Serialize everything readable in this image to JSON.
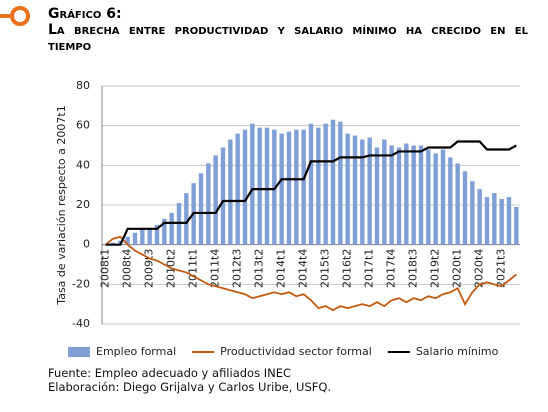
{
  "chart_data": {
    "type": "bar-line",
    "title": "Gráfico 6:",
    "subtitle": "La brecha entre productividad y salario mínimo ha crecido en el tiempo",
    "y_label": "Tasa de variación respecto a 2007t1",
    "notes": [
      "Fuente: Empleo adecuado y afiliados INEC",
      "Elaboración: Diego Grijalva y Carlos Uribe, USFQ."
    ],
    "categories": [
      "2008t1",
      null,
      null,
      "2008t4",
      null,
      null,
      "2009t3",
      null,
      null,
      "2010t2",
      null,
      null,
      "2011t1",
      null,
      null,
      "2011t4",
      null,
      null,
      "2012t3",
      null,
      null,
      "2013t2",
      null,
      null,
      "2014t1",
      null,
      null,
      "2014t4",
      null,
      null,
      "2015t3",
      null,
      null,
      "2016t2",
      null,
      null,
      "2017t1",
      null,
      null,
      "2017t4",
      null,
      null,
      "2018t3",
      null,
      null,
      "2019t2",
      null,
      null,
      "2020t1",
      null,
      null,
      "2020t4",
      null,
      null,
      "2021t3",
      null,
      null
    ],
    "series": [
      {
        "name": "Empleo formal",
        "kind": "bar",
        "color": "#7f9fd6",
        "values": [
          0,
          1,
          2,
          4,
          6,
          8,
          8,
          10,
          13,
          16,
          21,
          26,
          31,
          36,
          41,
          45,
          49,
          53,
          56,
          58,
          61,
          59,
          59,
          58,
          56,
          57,
          58,
          58,
          61,
          59,
          61,
          63,
          62,
          56,
          55,
          53,
          54,
          49,
          53,
          50,
          49,
          51,
          50,
          50,
          48,
          46,
          48,
          44,
          41,
          37,
          32,
          28,
          24,
          26,
          23,
          24,
          19
        ]
      },
      {
        "name": "Productividad sector formal",
        "kind": "line",
        "color": "#c55a11",
        "values": [
          0,
          3,
          4,
          0,
          -3,
          -5,
          -7,
          -8,
          -10,
          -12,
          -13,
          -14,
          -16,
          -18,
          -20,
          -21,
          -22,
          -23,
          -24,
          -25,
          -27,
          -26,
          -25,
          -24,
          -25,
          -24,
          -26,
          -25,
          -28,
          -32,
          -31,
          -33,
          -31,
          -32,
          -31,
          -30,
          -31,
          -29,
          -31,
          -28,
          -27,
          -29,
          -27,
          -28,
          -26,
          -27,
          -25,
          -24,
          -22,
          -30,
          -24,
          -20,
          -19,
          -20,
          -21,
          -18,
          -15
        ]
      },
      {
        "name": "Salario mínimo",
        "kind": "line",
        "color": "#000000",
        "values": [
          0,
          0,
          0,
          8,
          8,
          8,
          8,
          8,
          11,
          11,
          11,
          11,
          16,
          16,
          16,
          16,
          22,
          22,
          22,
          22,
          28,
          28,
          28,
          28,
          33,
          33,
          33,
          33,
          42,
          42,
          42,
          42,
          44,
          44,
          44,
          44,
          45,
          45,
          45,
          45,
          47,
          47,
          47,
          47,
          49,
          49,
          49,
          49,
          52,
          52,
          52,
          52,
          48,
          48,
          48,
          48,
          50
        ]
      }
    ],
    "ylim": [
      -40,
      80
    ],
    "yticks": [
      -40,
      -20,
      0,
      20,
      40,
      60,
      80
    ],
    "grid": true,
    "legend": "bottom"
  }
}
